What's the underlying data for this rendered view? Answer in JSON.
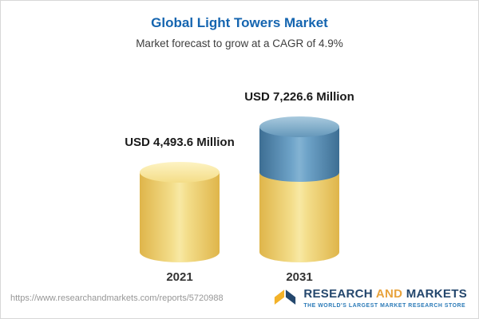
{
  "header": {
    "title": "Global Light Towers Market",
    "subtitle": "Market forecast to grow at a CAGR of 4.9%"
  },
  "chart_data": {
    "type": "bar",
    "style": "3d-cylinder",
    "categories": [
      "2021",
      "2031"
    ],
    "values": [
      4493.6,
      7226.6
    ],
    "value_labels": [
      "USD 4,493.6 Million",
      "USD 7,226.6 Million"
    ],
    "unit": "USD Million",
    "title": "Global Light Towers Market",
    "subtitle": "Market forecast to grow at a CAGR of 4.9%",
    "ylim": [
      0,
      7226.6
    ],
    "legend_position": "none",
    "grid": false,
    "colors": {
      "base_value": "#f0d879",
      "increment_value": "#5d92b6"
    }
  },
  "footer": {
    "url": "https://www.researchandmarkets.com/reports/5720988",
    "logo": {
      "word1": "RESEARCH",
      "word2": "AND",
      "word3": "MARKETS",
      "tagline": "THE WORLD'S LARGEST MARKET RESEARCH STORE"
    }
  }
}
